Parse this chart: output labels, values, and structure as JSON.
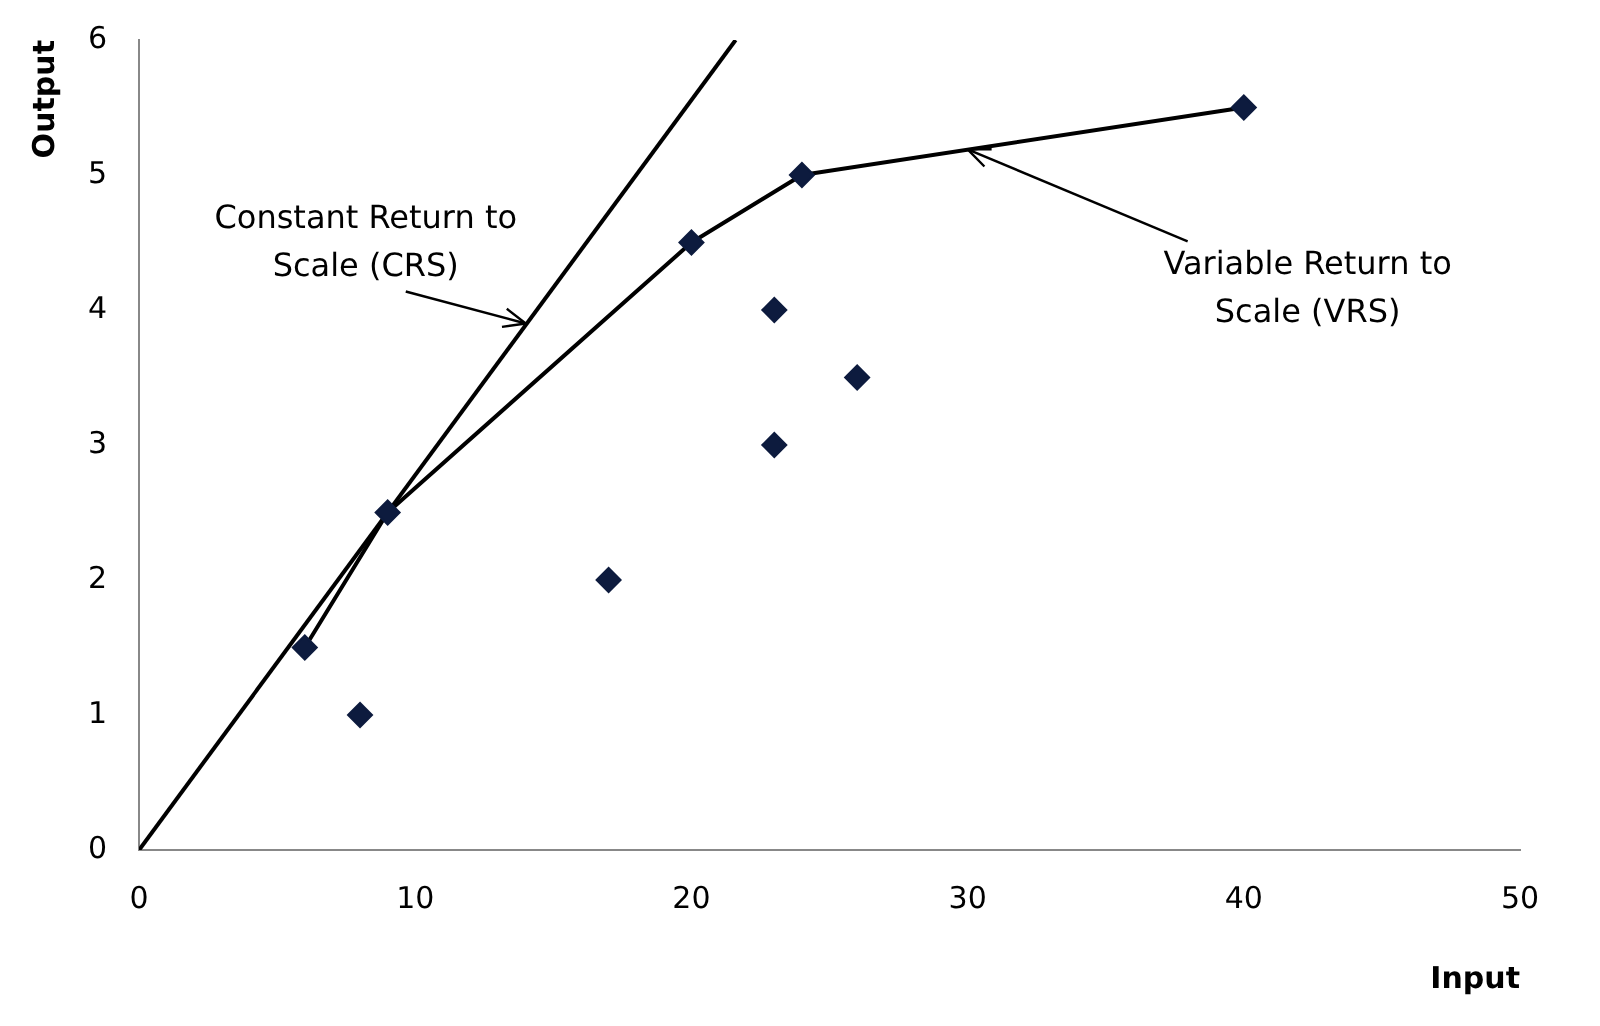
{
  "chart_data": {
    "type": "scatter",
    "xlabel": "Input",
    "ylabel": "Output",
    "xlim": [
      0,
      50
    ],
    "xticks": [
      0,
      10,
      20,
      30,
      40,
      50
    ],
    "ylim": [
      0,
      6
    ],
    "yticks": [
      0,
      1,
      2,
      3,
      4,
      5,
      6
    ],
    "grid": false,
    "legend": false,
    "marker": "diamond",
    "series": [
      {
        "color": "#0d1b3e",
        "x": [
          6,
          8,
          9,
          17,
          20,
          23,
          23,
          24,
          26,
          40
        ],
        "values": [
          1.5,
          1,
          2.5,
          2,
          4.5,
          4,
          3,
          5,
          3.5,
          5.5
        ]
      },
      {
        "type": "line",
        "color": "#000000",
        "x": [
          0,
          21.6
        ],
        "values": [
          0,
          6
        ],
        "marker": "none",
        "line_style": "solid"
      },
      {
        "type": "line",
        "color": "#000000",
        "x": [
          6,
          9,
          20,
          24,
          40
        ],
        "values": [
          1.5,
          2.5,
          4.5,
          5,
          5.5
        ],
        "marker": "none",
        "line_style": "solid"
      }
    ],
    "annotations": [
      {
        "text": "Constant Return to Scale (CRS)",
        "x": 14,
        "y": 3.9
      },
      {
        "text": "Variable Return to Scale (VRS)",
        "x": 30,
        "y": 5.19
      }
    ]
  }
}
